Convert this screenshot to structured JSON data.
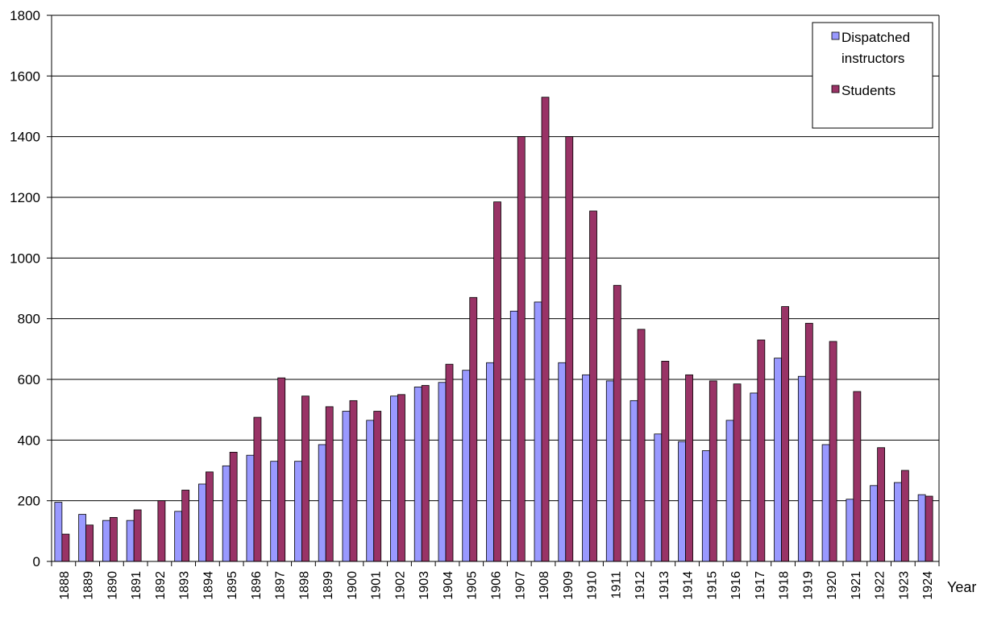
{
  "chart_data": {
    "type": "bar",
    "title": "",
    "xlabel": "Year",
    "ylabel": "",
    "ylim": [
      0,
      1800
    ],
    "yticks": [
      0,
      200,
      400,
      600,
      800,
      1000,
      1200,
      1400,
      1600,
      1800
    ],
    "grid": "horizontal",
    "legend_position": "top-right",
    "categories": [
      "1888",
      "1889",
      "1890",
      "1891",
      "1892",
      "1893",
      "1894",
      "1895",
      "1896",
      "1897",
      "1898",
      "1899",
      "1900",
      "1901",
      "1902",
      "1903",
      "1904",
      "1905",
      "1906",
      "1907",
      "1908",
      "1909",
      "1910",
      "1911",
      "1912",
      "1913",
      "1914",
      "1915",
      "1916",
      "1917",
      "1918",
      "1919",
      "1920",
      "1921",
      "1922",
      "1923",
      "1924"
    ],
    "series": [
      {
        "name": "Dispatched instructors",
        "color": "#9999ff",
        "values": [
          195,
          155,
          135,
          135,
          0,
          165,
          255,
          315,
          350,
          330,
          330,
          385,
          495,
          465,
          545,
          575,
          590,
          630,
          655,
          825,
          855,
          655,
          615,
          595,
          530,
          420,
          395,
          365,
          465,
          555,
          670,
          610,
          385,
          205,
          250,
          260,
          220
        ]
      },
      {
        "name": "Students",
        "color": "#993366",
        "values": [
          90,
          120,
          145,
          170,
          200,
          235,
          295,
          360,
          475,
          605,
          545,
          510,
          530,
          495,
          550,
          580,
          650,
          870,
          1185,
          1400,
          1530,
          1400,
          1155,
          910,
          765,
          660,
          615,
          595,
          585,
          730,
          840,
          785,
          725,
          560,
          375,
          300,
          215
        ]
      }
    ],
    "legend": {
      "items": [
        {
          "lines": [
            "Dispatched",
            "instructors"
          ],
          "color": "#9999ff"
        },
        {
          "lines": [
            "Students"
          ],
          "color": "#993366"
        }
      ]
    }
  }
}
